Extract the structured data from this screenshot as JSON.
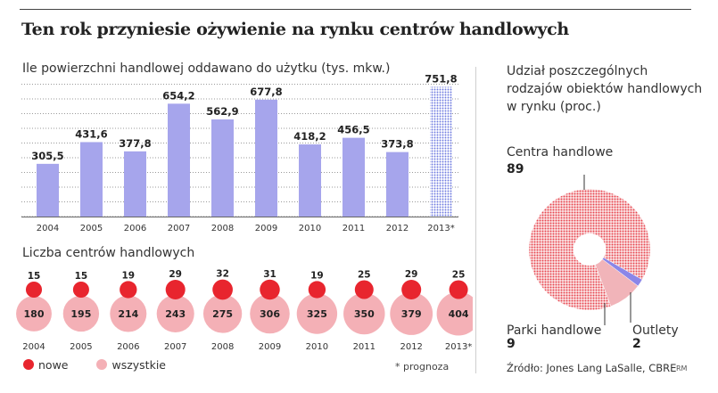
{
  "title": "Ten rok przyniesie ożywienie na rynku centrów handlowych",
  "colors": {
    "bar": "#a6a5ec",
    "bar_forecast": "#6f7be0",
    "new": "#e8252e",
    "all": "#f4b0b6",
    "pie_centra": "#e8454f",
    "pie_parki": "#f1b4b9",
    "pie_outlety": "#8b86e8"
  },
  "legend": {
    "new": "nowe",
    "all": "wszystkie"
  },
  "note": "* prognoza",
  "source": "Źródło: Jones Lang LaSalle, CBRE",
  "author": "RM",
  "chart_data": [
    {
      "type": "bar",
      "title": "Ile powierzchni handlowej oddawano do użytku (tys. mkw.)",
      "categories": [
        "2004",
        "2005",
        "2006",
        "2007",
        "2008",
        "2009",
        "2010",
        "2011",
        "2012",
        "2013*"
      ],
      "values": [
        305.5,
        431.6,
        377.8,
        654.2,
        562.9,
        677.8,
        418.2,
        456.5,
        373.8,
        751.8
      ],
      "value_labels": [
        "305,5",
        "431,6",
        "377,8",
        "654,2",
        "562,9",
        "677,8",
        "418,2",
        "456,5",
        "373,8",
        "751,8"
      ],
      "forecast": [
        false,
        false,
        false,
        false,
        false,
        false,
        false,
        false,
        false,
        true
      ],
      "ylim": [
        0,
        780
      ],
      "grid": true
    },
    {
      "type": "scatter",
      "title": "Liczba centrów handlowych",
      "categories": [
        "2004",
        "2005",
        "2006",
        "2007",
        "2008",
        "2009",
        "2010",
        "2011",
        "2012",
        "2013*"
      ],
      "series": [
        {
          "name": "nowe",
          "values": [
            15,
            15,
            19,
            29,
            32,
            31,
            19,
            25,
            29,
            25
          ]
        },
        {
          "name": "wszystkie",
          "values": [
            180,
            195,
            214,
            243,
            275,
            306,
            325,
            350,
            379,
            404
          ]
        }
      ]
    },
    {
      "type": "pie",
      "title": "Udział poszczególnych rodzajów obiektów handlowych w rynku (proc.)",
      "labels": [
        "Centra handlowe",
        "Parki handlowe",
        "Outlety"
      ],
      "values": [
        89,
        9,
        2
      ]
    }
  ]
}
